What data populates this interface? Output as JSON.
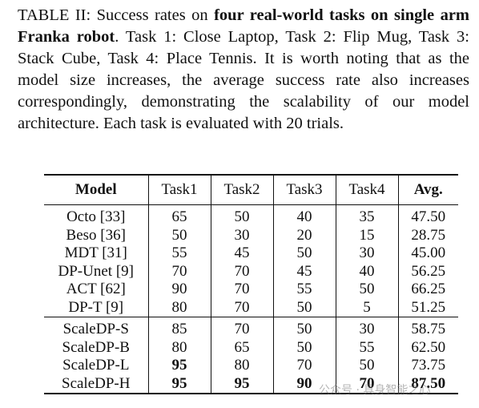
{
  "caption": {
    "label": "TABLE II: Success rates on ",
    "bold": "four real-world tasks on single arm Franka robot",
    "rest": ". Task 1: Close Laptop, Task 2: Flip Mug, Task 3: Stack Cube, Task 4: Place Tennis. It is worth noting that as the model size increases, the average success rate also increases correspondingly, demonstrating the scalability of our model architecture. Each task is evaluated with 20 trials."
  },
  "table": {
    "header": [
      "Model",
      "Task1",
      "Task2",
      "Task3",
      "Task4",
      "Avg."
    ],
    "groups": [
      [
        [
          "Octo [33]",
          "65",
          "50",
          "40",
          "35",
          "47.50"
        ],
        [
          "Beso [36]",
          "50",
          "30",
          "20",
          "15",
          "28.75"
        ],
        [
          "MDT [31]",
          "55",
          "45",
          "50",
          "30",
          "45.00"
        ],
        [
          "DP-Unet [9]",
          "70",
          "70",
          "45",
          "40",
          "56.25"
        ],
        [
          "ACT [62]",
          "90",
          "70",
          "55",
          "50",
          "66.25"
        ],
        [
          "DP-T [9]",
          "80",
          "70",
          "50",
          "5",
          "51.25"
        ]
      ],
      [
        [
          "ScaleDP-S",
          "85",
          "70",
          "50",
          "30",
          "58.75"
        ],
        [
          "ScaleDP-B",
          "80",
          "65",
          "50",
          "55",
          "62.50"
        ],
        [
          "ScaleDP-L",
          {
            "text": "95",
            "bold": true
          },
          "80",
          "70",
          "50",
          "73.75"
        ],
        [
          "ScaleDP-H",
          {
            "text": "95",
            "bold": true
          },
          {
            "text": "95",
            "bold": true
          },
          {
            "text": "90",
            "bold": true
          },
          {
            "text": "70",
            "bold": true
          },
          {
            "text": "87.50",
            "bold": true
          }
        ]
      ]
    ]
  },
  "watermark": "公众号 · 具身智能之心"
}
